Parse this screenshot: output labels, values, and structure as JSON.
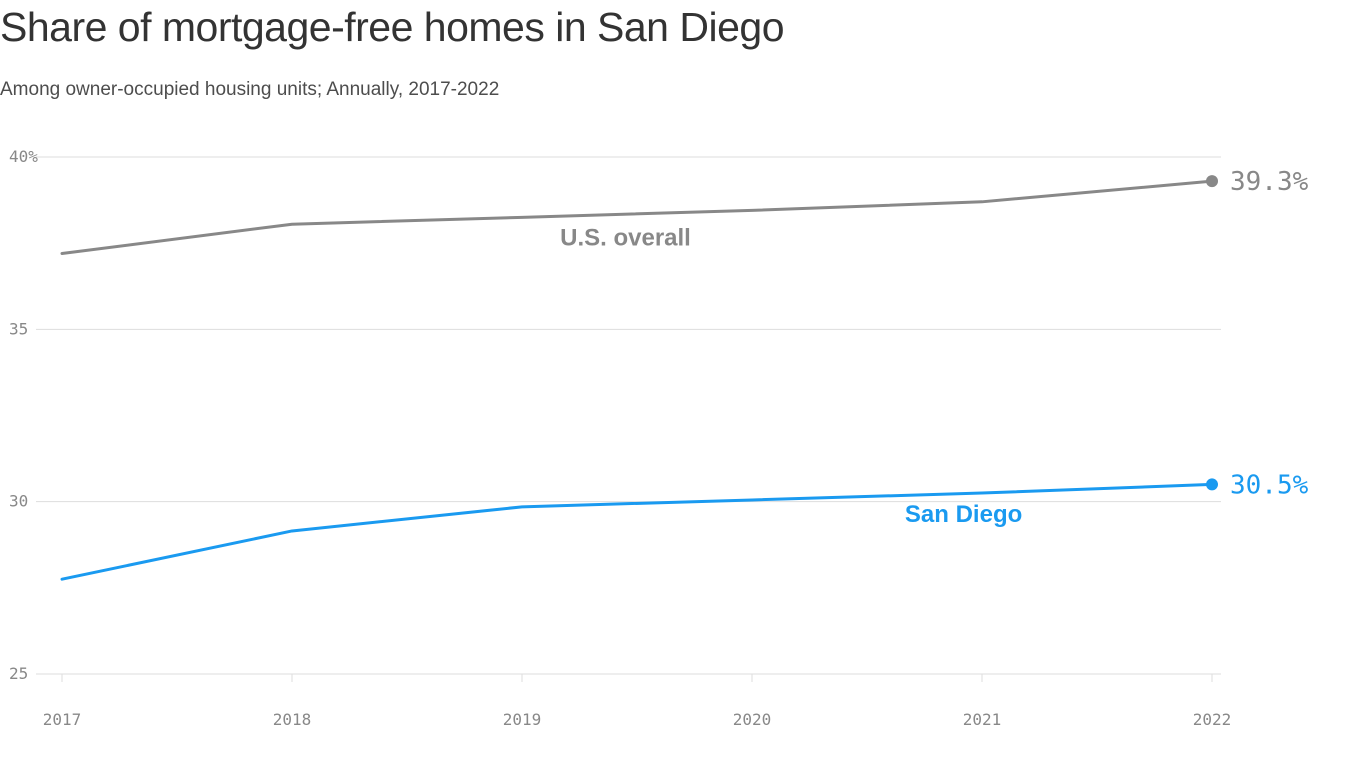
{
  "title": "Share of mortgage-free homes in San Diego",
  "subtitle": "Among owner-occupied housing units; Annually, 2017-2022",
  "colors": {
    "us": "#888888",
    "san_diego": "#1a9af0",
    "grid": "#dddddd",
    "axis_text": "#888888"
  },
  "chart_data": {
    "type": "line",
    "title": "Share of mortgage-free homes in San Diego",
    "subtitle": "Among owner-occupied housing units; Annually, 2017-2022",
    "x": [
      2017,
      2018,
      2019,
      2020,
      2021,
      2022
    ],
    "x_tick_labels": [
      "2017",
      "2018",
      "2019",
      "2020",
      "2021",
      "2022"
    ],
    "ylim": [
      25,
      40
    ],
    "y_ticks": [
      25,
      30,
      35,
      40
    ],
    "y_tick_labels": [
      "25",
      "30",
      "35",
      "40%"
    ],
    "grid": "horizontal",
    "series": [
      {
        "name": "U.S. overall",
        "color": "#888888",
        "values": [
          37.2,
          38.05,
          38.25,
          38.45,
          38.7,
          39.3
        ],
        "end_label": "39.3%"
      },
      {
        "name": "San Diego",
        "color": "#1a9af0",
        "values": [
          27.75,
          29.15,
          29.85,
          30.05,
          30.25,
          30.5
        ],
        "end_label": "30.5%"
      }
    ]
  }
}
